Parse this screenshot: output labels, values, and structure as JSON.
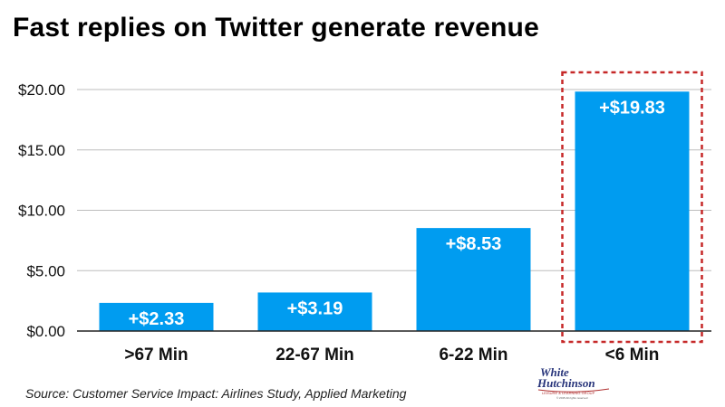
{
  "title": "Fast replies on Twitter generate revenue",
  "source": "Source: Customer Service Impact: Airlines Study, Applied Marketing",
  "logo": {
    "line1": "White",
    "line2": "Hutchinson",
    "tagline": "LEISURE & LEARNING GROUP",
    "copyright": "© 2015 All rights reserved"
  },
  "colors": {
    "bar": "#009cf0",
    "highlight_border": "#c62828",
    "grid": "#bdbdbd",
    "axis": "#222222"
  },
  "chart_data": {
    "type": "bar",
    "categories": [
      ">67 Min",
      "22-67 Min",
      "6-22 Min",
      "<6 Min"
    ],
    "values": [
      2.33,
      3.19,
      8.53,
      19.83
    ],
    "data_labels": [
      "+$2.33",
      "+$3.19",
      "+$8.53",
      "+$19.83"
    ],
    "y_ticks": [
      0,
      5,
      10,
      15,
      20
    ],
    "y_tick_labels": [
      "$0.00",
      "$5.00",
      "$10.00",
      "$15.00",
      "$20.00"
    ],
    "ylim": [
      0,
      20
    ],
    "grid": true,
    "highlighted_category": "<6 Min"
  }
}
